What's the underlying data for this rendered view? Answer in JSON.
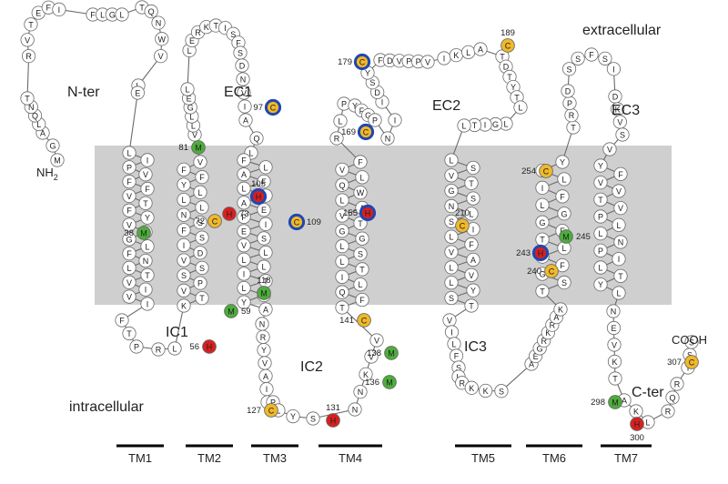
{
  "colors": {
    "membrane": "#cfcfcf",
    "ring": "#1f47b0",
    "cys": "#f0b929",
    "his": "#d81f1f",
    "met": "#4cae3a",
    "plain": "#ffffff",
    "stroke": "#6a6a6a",
    "bar": "#000000"
  },
  "labels": {
    "extracellular": "extracellular",
    "intracellular": "intracellular",
    "nter": "N-ter",
    "nh2": "NH",
    "nh2_sub": "2",
    "cooh": "COOH",
    "cter": "C-ter",
    "ec1": "EC1",
    "ec2": "EC2",
    "ec3": "EC3",
    "ic1": "IC1",
    "ic2": "IC2",
    "ic3": "IC3"
  },
  "tm_segments": [
    "TM1",
    "TM2",
    "TM3",
    "TM4",
    "TM5",
    "TM6",
    "TM7"
  ],
  "nter_letters": [
    "M",
    "G",
    "A",
    "L",
    "Q",
    "N",
    "T",
    "R",
    "V",
    "T",
    "E",
    "F",
    "I",
    "F",
    "L",
    "G",
    "L",
    "T",
    "Q",
    "N",
    "W",
    "V",
    "L",
    "E"
  ],
  "tm1_letters": [
    "L",
    "I",
    "P",
    "V",
    "F",
    "F",
    "V",
    "T",
    "F",
    "Y",
    "V",
    "L",
    "G",
    "L",
    "F",
    "N",
    "L",
    "T",
    "V",
    "I",
    "V",
    "I"
  ],
  "ic1_letters": [
    "F",
    "T",
    "P",
    "R",
    "L"
  ],
  "tm2_letters": [
    "K",
    "T",
    "V",
    "P",
    "S",
    "S",
    "V",
    "D",
    "I",
    "S",
    "F",
    "S",
    "N",
    "L",
    "L",
    "L",
    "Y",
    "F",
    "F",
    "V"
  ],
  "ec1_letters": [
    "V",
    "L",
    "L",
    "G",
    "E",
    "L",
    "L",
    "E",
    "R",
    "K",
    "T",
    "I",
    "S",
    "F",
    "S",
    "D",
    "N",
    "V",
    "I",
    "A",
    "Q",
    "L"
  ],
  "tm3_letters": [
    "F",
    "L",
    "A",
    "F",
    "L",
    "I",
    "A",
    "E",
    "F",
    "I",
    "E",
    "S",
    "V",
    "L",
    "L",
    "L",
    "I",
    "T",
    "L",
    "A",
    "Y",
    "A"
  ],
  "ic2_letters": [
    "N",
    "R",
    "Y",
    "V",
    "A",
    "I",
    "I",
    "P",
    "L",
    "Y",
    "S",
    "N",
    "N",
    "K",
    "V",
    "V"
  ],
  "tm4_letters": [
    "T",
    "F",
    "Q",
    "L",
    "I",
    "T",
    "L",
    "S",
    "L",
    "G",
    "G",
    "T",
    "V",
    "A",
    "L",
    "W",
    "Q",
    "L",
    "V",
    "F"
  ],
  "ec2_letters": [
    "R",
    "L",
    "P",
    "Y",
    "F",
    "G",
    "P",
    "N",
    "I",
    "I",
    "D",
    "S",
    "Y",
    "F",
    "D",
    "V",
    "P",
    "P",
    "V",
    "I",
    "K",
    "L",
    "A",
    "T",
    "D",
    "T",
    "Y",
    "T",
    "L",
    "L",
    "G",
    "I",
    "T",
    "L"
  ],
  "tm5_letters": [
    "L",
    "S",
    "V",
    "T",
    "G",
    "S",
    "N",
    "L",
    "S",
    "I",
    "L",
    "F",
    "V",
    "A",
    "L",
    "V",
    "L",
    "Y",
    "S",
    "T"
  ],
  "ic3_letters": [
    "V",
    "I",
    "L",
    "F",
    "S",
    "L",
    "R",
    "K",
    "K",
    "S",
    "A",
    "E",
    "G",
    "R",
    "K",
    "R",
    "A",
    "K"
  ],
  "tm6_letters": [
    "T",
    "S",
    "G",
    "F",
    "V",
    "L",
    "T",
    "F",
    "G",
    "G",
    "L",
    "F",
    "I",
    "L",
    "P",
    "Y"
  ],
  "ec3_letters": [
    "T",
    "R",
    "P",
    "D",
    "S",
    "S",
    "F",
    "S",
    "I",
    "D",
    "K",
    "V",
    "S",
    "V"
  ],
  "tm7_letters": [
    "Y",
    "F",
    "V",
    "V",
    "T",
    "V",
    "P",
    "L",
    "L",
    "N",
    "P",
    "I",
    "L",
    "T",
    "Y",
    "L"
  ],
  "cter_letters": [
    "N",
    "E",
    "V",
    "K",
    "T",
    "A",
    "K",
    "L",
    "R",
    "Q",
    "R",
    "I",
    "S",
    "S"
  ],
  "special_residues": [
    {
      "aa": "M",
      "num": "81",
      "kind": "met"
    },
    {
      "aa": "M",
      "num": "38",
      "kind": "met"
    },
    {
      "aa": "C",
      "num": "72",
      "kind": "cys"
    },
    {
      "aa": "H",
      "num": "73",
      "kind": "his"
    },
    {
      "aa": "M",
      "num": "59",
      "kind": "met"
    },
    {
      "aa": "H",
      "num": "56",
      "kind": "his"
    },
    {
      "aa": "C",
      "num": "97",
      "kind": "cys-ring"
    },
    {
      "aa": "H",
      "num": "105",
      "kind": "his-ring"
    },
    {
      "aa": "C",
      "num": "109",
      "kind": "cys-ring"
    },
    {
      "aa": "M",
      "num": "118",
      "kind": "met"
    },
    {
      "aa": "C",
      "num": "127",
      "kind": "cys"
    },
    {
      "aa": "H",
      "num": "131",
      "kind": "his"
    },
    {
      "aa": "M",
      "num": "136",
      "kind": "met"
    },
    {
      "aa": "M",
      "num": "138",
      "kind": "met"
    },
    {
      "aa": "C",
      "num": "141",
      "kind": "cys"
    },
    {
      "aa": "H",
      "num": "155",
      "kind": "his-ring"
    },
    {
      "aa": "C",
      "num": "169",
      "kind": "cys-ring"
    },
    {
      "aa": "C",
      "num": "179",
      "kind": "cys-ring"
    },
    {
      "aa": "C",
      "num": "189",
      "kind": "cys"
    },
    {
      "aa": "C",
      "num": "210",
      "kind": "cys"
    },
    {
      "aa": "H",
      "num": "243",
      "kind": "his-ring"
    },
    {
      "aa": "M",
      "num": "245",
      "kind": "met"
    },
    {
      "aa": "C",
      "num": "240",
      "kind": "cys"
    },
    {
      "aa": "C",
      "num": "254",
      "kind": "cys"
    },
    {
      "aa": "M",
      "num": "298",
      "kind": "met"
    },
    {
      "aa": "H",
      "num": "300",
      "kind": "his"
    },
    {
      "aa": "C",
      "num": "307",
      "kind": "cys"
    }
  ]
}
